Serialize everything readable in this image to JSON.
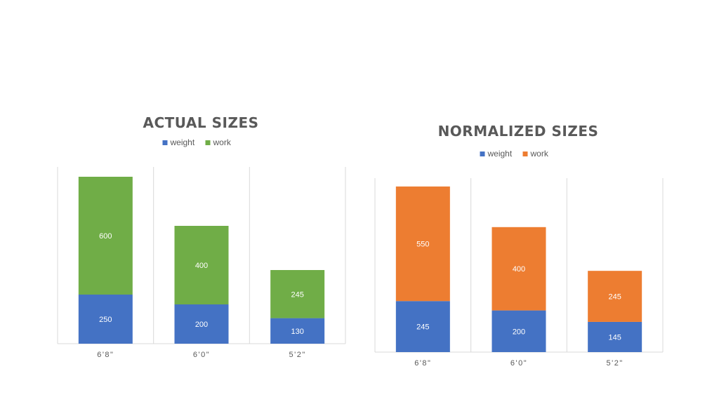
{
  "chart_data": [
    {
      "type": "bar",
      "stacked": true,
      "title": "ACTUAL SIZES",
      "categories": [
        "6'8\"",
        "6'0\"",
        "5'2\""
      ],
      "series": [
        {
          "name": "weight",
          "values": [
            250,
            200,
            130
          ],
          "color": "#4472C4"
        },
        {
          "name": "work",
          "values": [
            600,
            400,
            245
          ],
          "color": "#70AD47"
        }
      ],
      "ylim": [
        0,
        900
      ],
      "legend": "top",
      "grid": "vertical separators"
    },
    {
      "type": "bar",
      "stacked": true,
      "title": "NORMALIZED SIZES",
      "categories": [
        "6'8\"",
        "6'0\"",
        "5'2\""
      ],
      "series": [
        {
          "name": "weight",
          "values": [
            245,
            200,
            145
          ],
          "color": "#4472C4"
        },
        {
          "name": "work",
          "values": [
            550,
            400,
            245
          ],
          "color": "#ED7D31"
        }
      ],
      "ylim": [
        0,
        835
      ],
      "legend": "top",
      "grid": "vertical separators"
    }
  ]
}
